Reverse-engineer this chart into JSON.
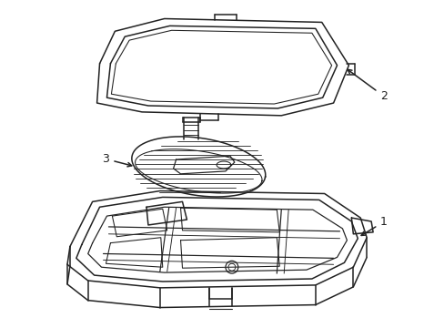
{
  "background_color": "#ffffff",
  "line_color": "#222222",
  "line_width": 1.1,
  "figsize": [
    4.89,
    3.6
  ],
  "dpi": 100,
  "label_fontsize": 9
}
